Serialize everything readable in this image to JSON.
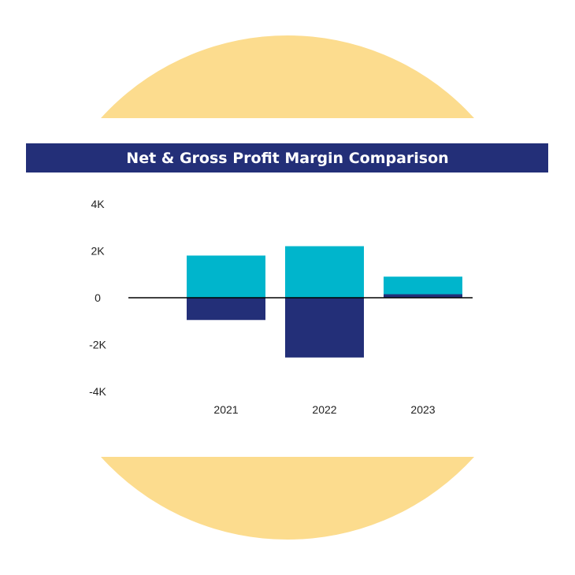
{
  "colors": {
    "circle": "#FCDC8E",
    "title_band": "#232F78",
    "title_text": "#FFFFFF",
    "gross_bar": "#00B5CC",
    "net_bar": "#232F78",
    "axis_line": "#000000",
    "tick_text": "#222222"
  },
  "chart_data": {
    "type": "bar",
    "title": "Net & Gross Profit Margin Comparison",
    "xlabel": "",
    "ylabel": "",
    "categories": [
      "2021",
      "2022",
      "2023"
    ],
    "series": [
      {
        "values": [
          1800,
          2200,
          900
        ]
      },
      {
        "values": [
          -950,
          -2550,
          150
        ]
      }
    ],
    "ylim": [
      -4000,
      4000
    ],
    "yticks": [
      {
        "value": 4000,
        "label": "4K"
      },
      {
        "value": 2000,
        "label": "2K"
      },
      {
        "value": 0,
        "label": "0"
      },
      {
        "value": -2000,
        "label": "-2K"
      },
      {
        "value": -4000,
        "label": "-4K"
      }
    ],
    "grid": false,
    "legend": "none"
  }
}
